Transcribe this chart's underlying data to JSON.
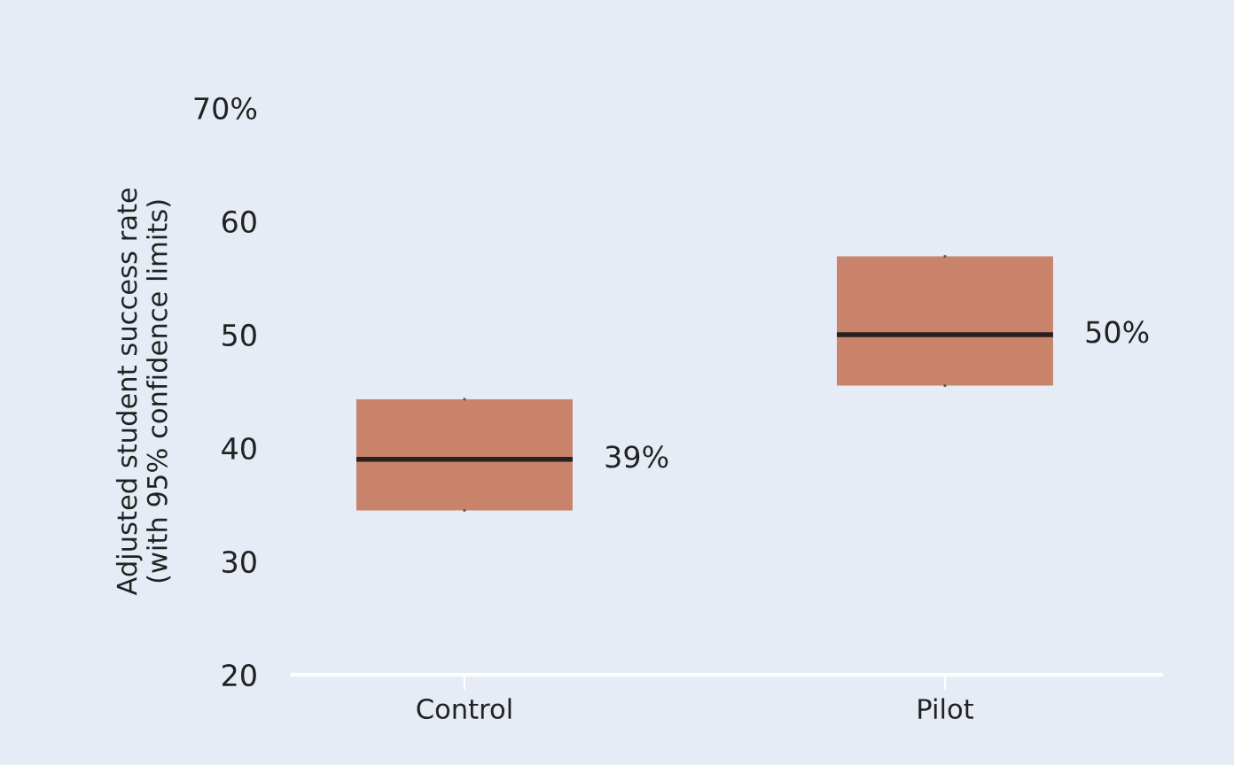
{
  "chart_data": {
    "type": "box",
    "ylabel": "Adjusted student success rate\n(with 95% confidence limits)",
    "categories": [
      "Control",
      "Pilot"
    ],
    "boxes": [
      {
        "q1": 34.5,
        "median": 39,
        "q3": 44.3
      },
      {
        "q1": 45.5,
        "median": 50,
        "q3": 56.9
      }
    ],
    "value_labels": [
      "39%",
      "50%"
    ],
    "color": "#c8836a",
    "ylim": [
      20,
      70
    ],
    "yticks": [
      20,
      30,
      40,
      50,
      60,
      {
        "value": 70,
        "label": "70%"
      }
    ],
    "grid": false,
    "legend": false
  }
}
